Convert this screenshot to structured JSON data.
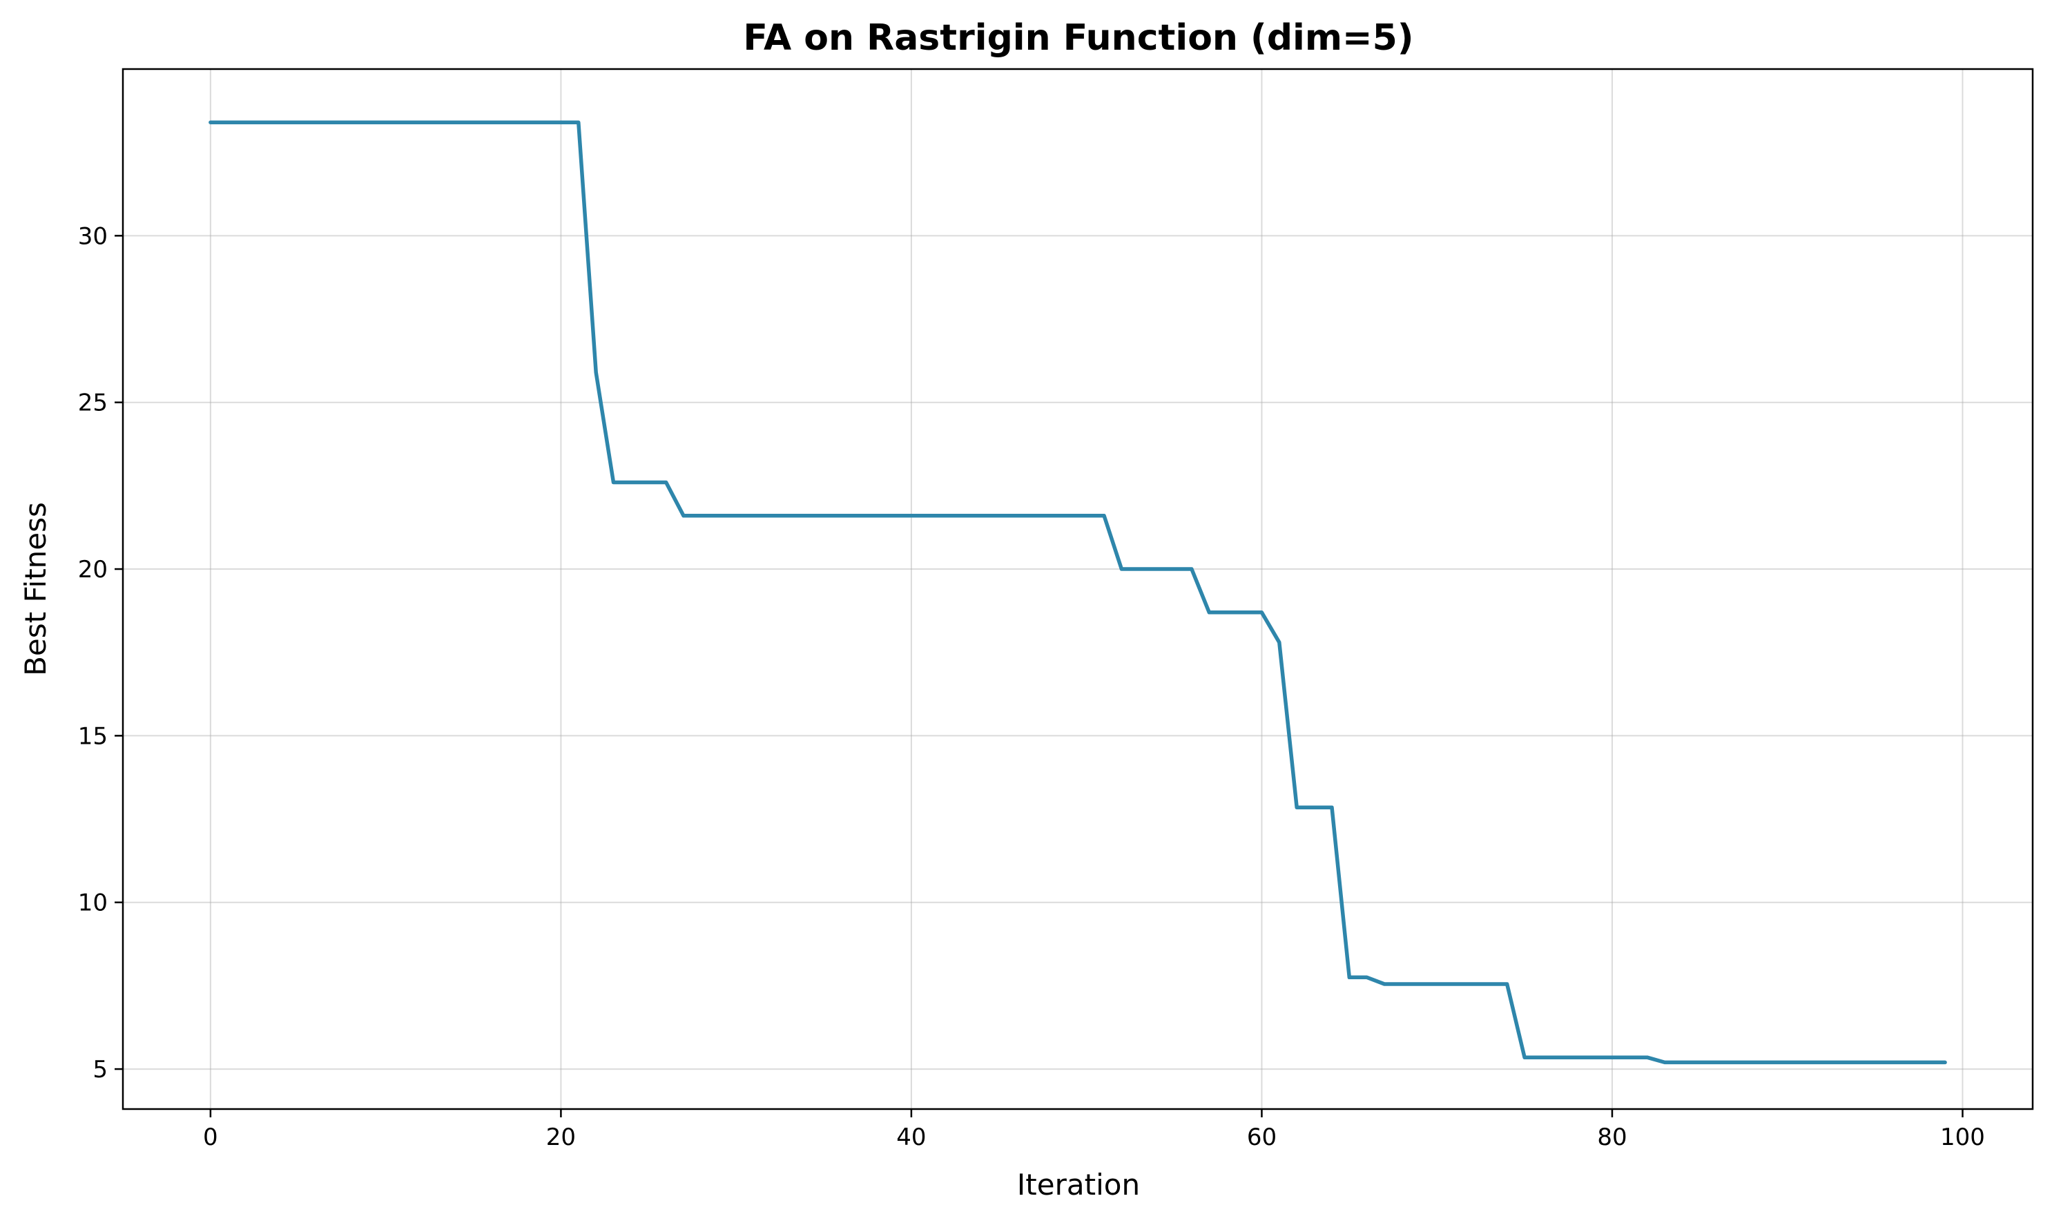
{
  "chart_data": {
    "type": "line",
    "title": "FA on Rastrigin Function (dim=5)",
    "xlabel": "Iteration",
    "ylabel": "Best Fitness",
    "xlim": [
      -5,
      104
    ],
    "ylim": [
      3.8,
      35.0
    ],
    "xticks": [
      0,
      20,
      40,
      60,
      80,
      100
    ],
    "yticks": [
      5,
      10,
      15,
      20,
      25,
      30
    ],
    "grid": true,
    "line_color": "#2e86ab",
    "series": [
      {
        "points": [
          [
            0,
            33.4
          ],
          [
            21,
            33.4
          ],
          [
            22,
            25.9
          ],
          [
            23,
            22.6
          ],
          [
            26,
            22.6
          ],
          [
            27,
            21.6
          ],
          [
            51,
            21.6
          ],
          [
            52,
            20.0
          ],
          [
            56,
            20.0
          ],
          [
            57,
            18.7
          ],
          [
            60,
            18.7
          ],
          [
            61,
            17.8
          ],
          [
            62,
            12.85
          ],
          [
            64,
            12.85
          ],
          [
            65,
            7.75
          ],
          [
            66,
            7.75
          ],
          [
            67,
            7.55
          ],
          [
            74,
            7.55
          ],
          [
            75,
            5.35
          ],
          [
            82,
            5.35
          ],
          [
            83,
            5.2
          ],
          [
            99,
            5.2
          ]
        ]
      }
    ]
  }
}
